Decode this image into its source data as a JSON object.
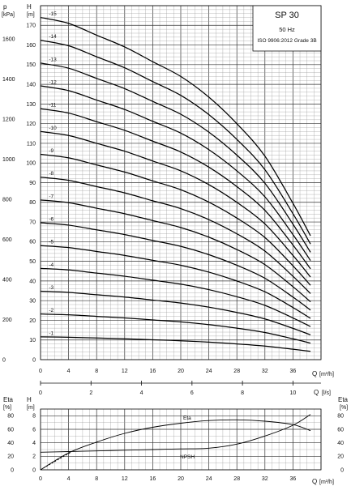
{
  "title_box": {
    "model": "SP 30",
    "frequency": "50 Hz",
    "standard": "ISO 9906:2012 Grade 3B"
  },
  "chart_data": [
    {
      "type": "line",
      "name_hidden": true,
      "x_axis": {
        "label": "Q",
        "unit": "[m³/h]",
        "range": [
          0,
          40
        ],
        "ticks": [
          0,
          4,
          8,
          12,
          16,
          20,
          24,
          28,
          32,
          36
        ]
      },
      "x_axis_secondary": {
        "label": "Q",
        "unit": "[l/s]",
        "range": [
          0,
          11.11
        ],
        "ticks": [
          0,
          2,
          4,
          6,
          8,
          10
        ]
      },
      "y_axis": {
        "label": "H",
        "unit": "[m]",
        "range": [
          0,
          180
        ],
        "ticks": [
          0,
          10,
          20,
          30,
          40,
          50,
          60,
          70,
          80,
          90,
          100,
          110,
          120,
          130,
          140,
          150,
          160,
          170
        ]
      },
      "y_axis_secondary": {
        "label": "p",
        "unit": "[kPa]",
        "range": [
          0,
          1765
        ],
        "ticks": [
          0,
          200,
          400,
          600,
          800,
          1000,
          1200,
          1400,
          1600
        ]
      },
      "grid": true,
      "stages_single": [
        [
          0,
          11.6
        ],
        [
          4,
          11.4
        ],
        [
          8,
          11.0
        ],
        [
          12,
          10.6
        ],
        [
          16,
          10.1
        ],
        [
          20,
          9.6
        ],
        [
          24,
          8.9
        ],
        [
          28,
          8.0
        ],
        [
          32,
          6.9
        ],
        [
          36,
          5.3
        ],
        [
          38.5,
          4.2
        ]
      ],
      "series": [
        {
          "name": "-1",
          "stages": 1
        },
        {
          "name": "-2",
          "stages": 2
        },
        {
          "name": "-3",
          "stages": 3
        },
        {
          "name": "-4",
          "stages": 4
        },
        {
          "name": "-5",
          "stages": 5
        },
        {
          "name": "-6",
          "stages": 6
        },
        {
          "name": "-7",
          "stages": 7
        },
        {
          "name": "-8",
          "stages": 8
        },
        {
          "name": "-9",
          "stages": 9
        },
        {
          "name": "-10",
          "stages": 10
        },
        {
          "name": "-11",
          "stages": 11
        },
        {
          "name": "-12",
          "stages": 12
        },
        {
          "name": "-13",
          "stages": 13
        },
        {
          "name": "-14",
          "stages": 14
        },
        {
          "name": "-15",
          "stages": 15
        }
      ]
    },
    {
      "type": "line",
      "x_axis": {
        "label": "Q",
        "unit": "[m³/h]",
        "range": [
          0,
          40
        ],
        "ticks": [
          0,
          4,
          8,
          12,
          16,
          20,
          24,
          28,
          32,
          36
        ]
      },
      "y_axis": {
        "label": "H",
        "unit": "[m]",
        "range": [
          0,
          9
        ],
        "ticks": [
          0,
          2,
          4,
          6,
          8
        ]
      },
      "y_axis_secondary": {
        "label": "Eta",
        "unit": "[%]",
        "range": [
          0,
          90
        ],
        "ticks": [
          0,
          20,
          40,
          60,
          80
        ]
      },
      "y_axis_tertiary_ticks": [
        0,
        20,
        40,
        60,
        80
      ],
      "grid": true,
      "series": [
        {
          "name": "Eta",
          "x": [
            0,
            4,
            8,
            12,
            16,
            20,
            24,
            28,
            32,
            36,
            38.5
          ],
          "y": [
            0,
            25,
            41,
            54,
            63,
            69,
            73,
            74,
            72,
            67,
            58
          ]
        },
        {
          "name": "NPSH",
          "x": [
            0,
            4,
            8,
            12,
            16,
            20,
            24,
            28,
            32,
            36,
            38.5
          ],
          "y": [
            2.6,
            2.7,
            2.8,
            2.9,
            3.0,
            3.1,
            3.2,
            3.8,
            5.0,
            6.6,
            8.2
          ]
        }
      ]
    }
  ]
}
